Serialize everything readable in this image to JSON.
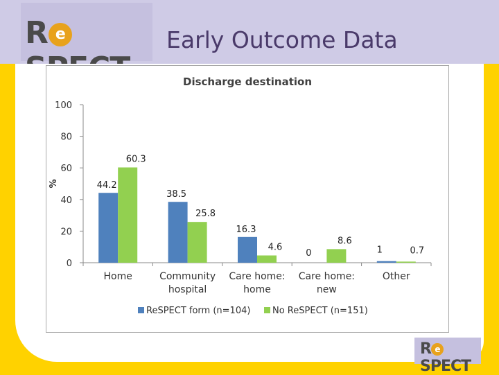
{
  "header": {
    "logo_text_pre": "R",
    "logo_text_e": "e",
    "logo_text_post": "SPECT",
    "title": "Early Outcome Data"
  },
  "footer_logo": {
    "pre": "R",
    "e": "e",
    "post": "SPECT"
  },
  "colors": {
    "header_bg": "#cfcbe6",
    "page_bg": "#ffd200",
    "series1": "#4f81bd",
    "series2": "#92d050"
  },
  "chart_data": {
    "type": "bar",
    "title": "Discharge destination",
    "xlabel": "",
    "ylabel": "%",
    "ylim": [
      0,
      100
    ],
    "yticks": [
      0,
      20,
      40,
      60,
      80,
      100
    ],
    "categories": [
      [
        "Home"
      ],
      [
        "Community",
        "hospital"
      ],
      [
        "Care home:",
        "home"
      ],
      [
        "Care home:",
        "new"
      ],
      [
        "Other"
      ]
    ],
    "series": [
      {
        "name": "ReSPECT form (n=104)",
        "values": [
          44.2,
          38.5,
          16.3,
          0,
          1
        ],
        "labels": [
          "44.2",
          "38.5",
          "16.3",
          "0",
          "1"
        ]
      },
      {
        "name": "No ReSPECT (n=151)",
        "values": [
          60.3,
          25.8,
          4.6,
          8.6,
          0.7
        ],
        "labels": [
          "60.3",
          "25.8",
          "4.6",
          "8.6",
          "0.7"
        ]
      }
    ],
    "grid": false,
    "legend_position": "bottom"
  }
}
